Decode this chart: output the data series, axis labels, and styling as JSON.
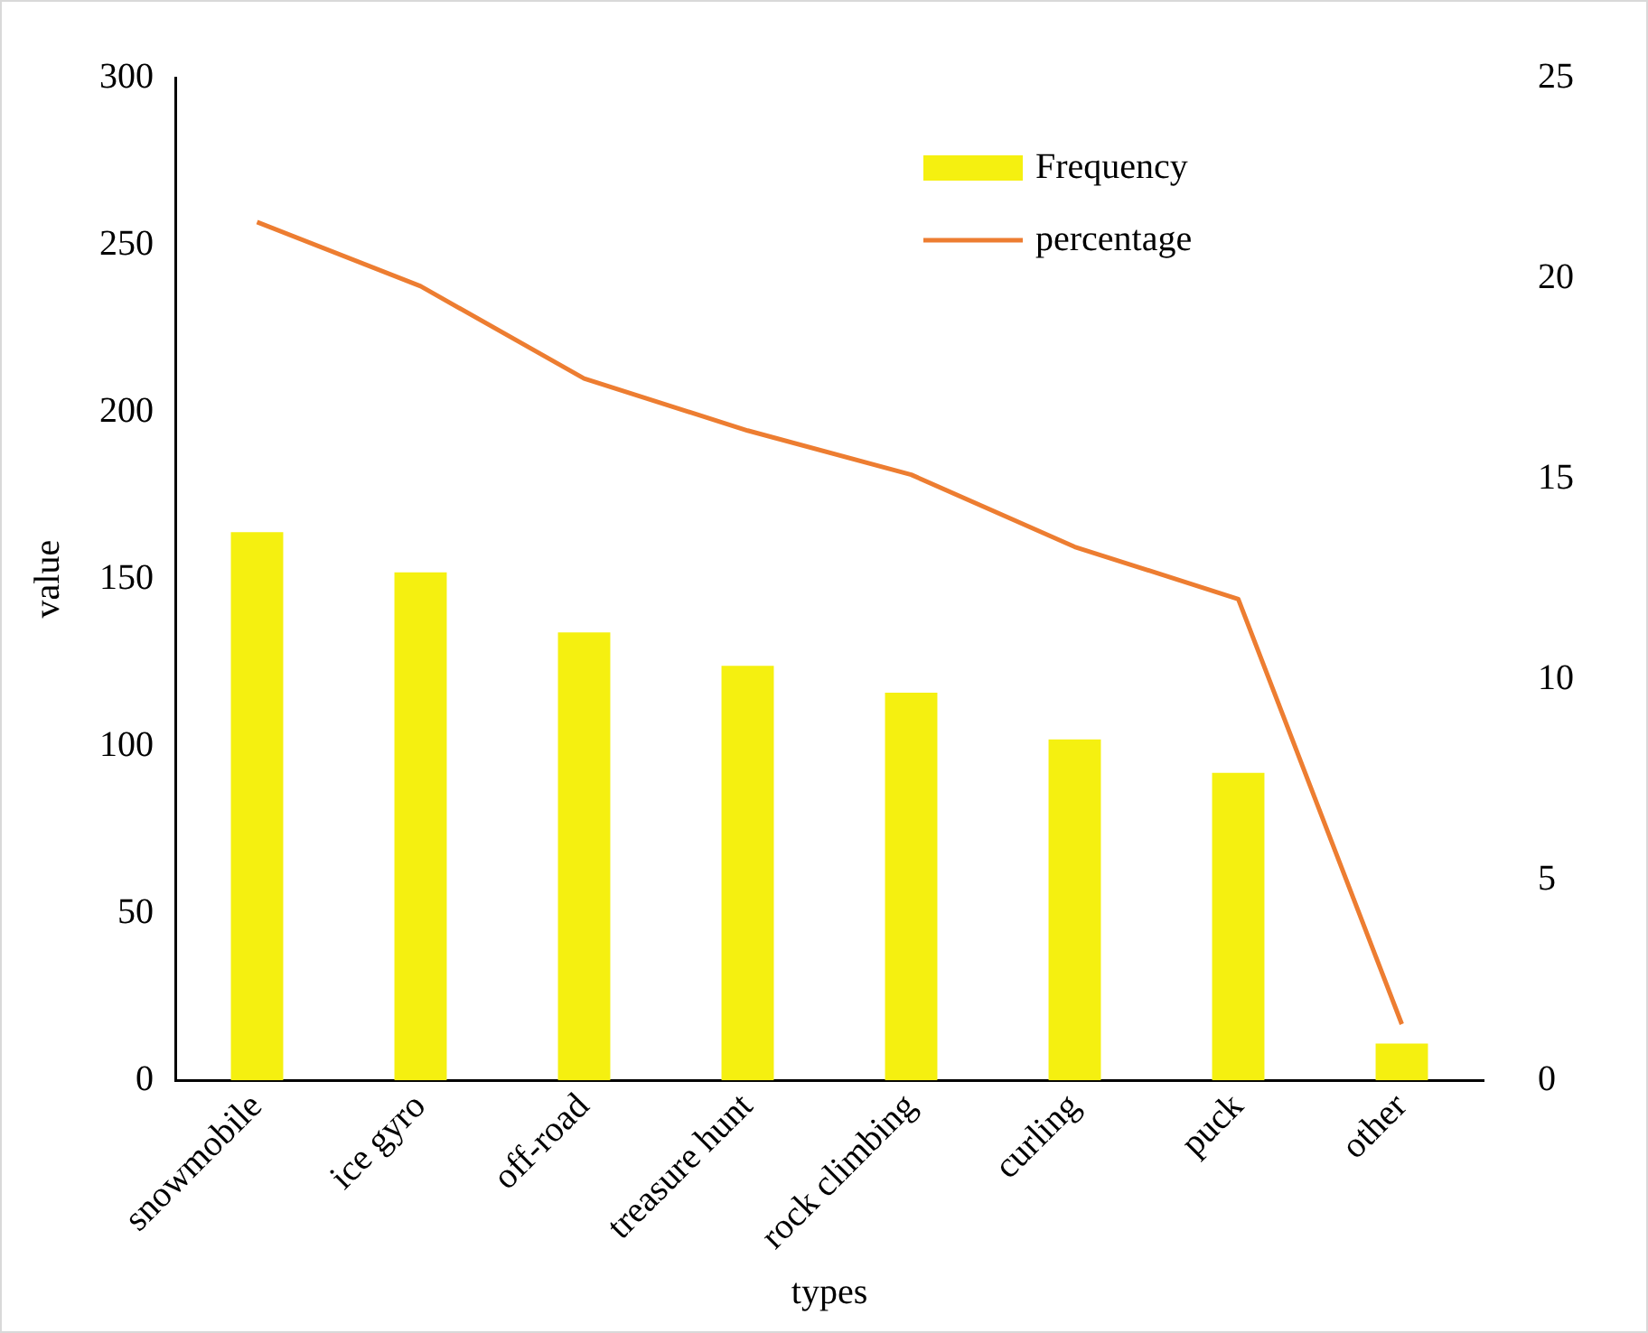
{
  "chart_data": {
    "type": "bar",
    "xlabel": "types",
    "ylabel": "value",
    "categories": [
      "snowmobile",
      "ice gyro",
      "off-road",
      "treasure hunt",
      "rock climbing",
      "curling",
      "puck",
      "other"
    ],
    "series": [
      {
        "name": "Frequency",
        "color": "#f5f010",
        "values": [
          164,
          152,
          134,
          124,
          116,
          102,
          92,
          11
        ]
      },
      {
        "name": "percentage",
        "type": "line",
        "axis": "y2",
        "color": "#ed7d31",
        "values": [
          21.4,
          19.8,
          17.5,
          16.2,
          15.1,
          13.3,
          12.0,
          1.4
        ]
      }
    ],
    "ylim": [
      0,
      300
    ],
    "yticks": [
      0,
      50,
      100,
      150,
      200,
      250,
      300
    ],
    "y2lim": [
      0,
      25
    ],
    "y2ticks": [
      0,
      5,
      10,
      15,
      20,
      25
    ],
    "grid": false,
    "legend": "top right",
    "marker": "none"
  }
}
